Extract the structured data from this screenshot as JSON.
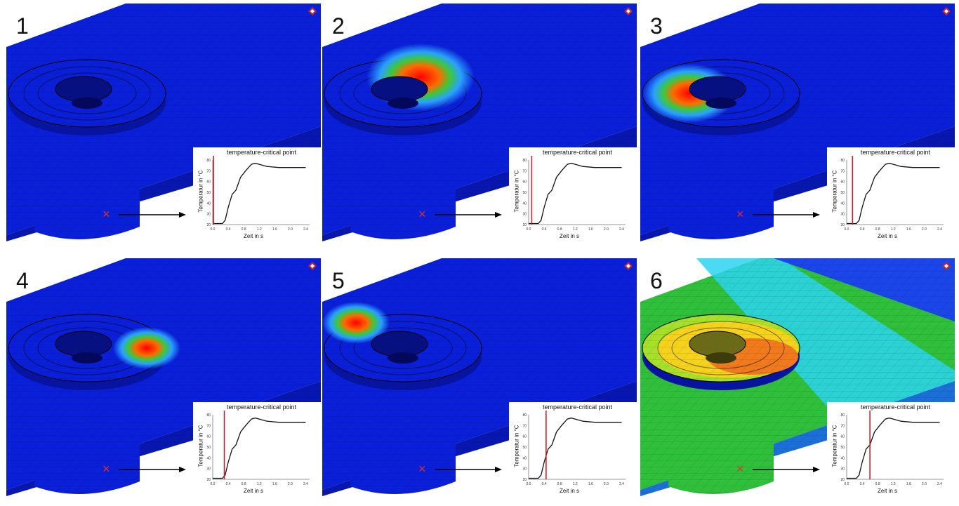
{
  "panels": [
    {
      "number": "1",
      "chart_title": "temperature-critical point"
    },
    {
      "number": "2",
      "chart_title": "temperature-critical point"
    },
    {
      "number": "3",
      "chart_title": "temperature-critical point"
    },
    {
      "number": "4",
      "chart_title": "temperature-critical point"
    },
    {
      "number": "5",
      "chart_title": "temperature-critical point"
    },
    {
      "number": "6",
      "chart_title": "temperature-critical point"
    }
  ],
  "chart_data": [
    {
      "type": "line",
      "title": "temperature-critical point",
      "xlabel": "Zeit in s",
      "ylabel": "Temperatur in °C",
      "xlim": [
        0,
        2.5
      ],
      "ylim": [
        20,
        80
      ],
      "x_ticks": [
        "0.0",
        "0.4",
        "0.8",
        "1.2",
        "1.6",
        "2.0",
        "2.4"
      ],
      "y_ticks": [
        "20",
        "30",
        "40",
        "50",
        "60",
        "70",
        "80"
      ],
      "series": [
        {
          "x": [
            0,
            0.25,
            0.32,
            0.4,
            0.5,
            0.6,
            0.72,
            0.85,
            1.0,
            1.1,
            1.2,
            1.4,
            1.7,
            2.0,
            2.4
          ],
          "y": [
            21,
            21,
            24,
            36,
            48,
            52,
            64,
            70,
            76,
            77,
            76,
            74,
            73,
            73,
            73
          ]
        }
      ],
      "cursor_x": 0.02
    },
    {
      "type": "line",
      "title": "temperature-critical point",
      "xlabel": "Zeit in s",
      "ylabel": "Temperatur in °C",
      "xlim": [
        0,
        2.5
      ],
      "ylim": [
        20,
        80
      ],
      "x_ticks": [
        "0.0",
        "0.4",
        "0.8",
        "1.2",
        "1.6",
        "2.0",
        "2.4"
      ],
      "y_ticks": [
        "20",
        "30",
        "40",
        "50",
        "60",
        "70",
        "80"
      ],
      "series": [
        {
          "x": [
            0,
            0.25,
            0.32,
            0.4,
            0.5,
            0.6,
            0.72,
            0.85,
            1.0,
            1.1,
            1.2,
            1.4,
            1.7,
            2.0,
            2.4
          ],
          "y": [
            21,
            21,
            24,
            36,
            48,
            52,
            64,
            70,
            76,
            77,
            76,
            74,
            73,
            73,
            73
          ]
        }
      ],
      "cursor_x": 0.08
    },
    {
      "type": "line",
      "title": "temperature-critical point",
      "xlabel": "Zeit in s",
      "ylabel": "Temperatur in °C",
      "xlim": [
        0,
        2.5
      ],
      "ylim": [
        20,
        80
      ],
      "x_ticks": [
        "0.0",
        "0.4",
        "0.8",
        "1.2",
        "1.6",
        "2.0",
        "2.4"
      ],
      "y_ticks": [
        "20",
        "30",
        "40",
        "50",
        "60",
        "70",
        "80"
      ],
      "series": [
        {
          "x": [
            0,
            0.25,
            0.32,
            0.4,
            0.5,
            0.6,
            0.72,
            0.85,
            1.0,
            1.1,
            1.2,
            1.4,
            1.7,
            2.0,
            2.4
          ],
          "y": [
            21,
            21,
            24,
            36,
            48,
            52,
            64,
            70,
            76,
            77,
            76,
            74,
            73,
            73,
            73
          ]
        }
      ],
      "cursor_x": 0.15
    },
    {
      "type": "line",
      "title": "temperature-critical point",
      "xlabel": "Zeit in s",
      "ylabel": "Temperatur in °C",
      "xlim": [
        0,
        2.5
      ],
      "ylim": [
        20,
        80
      ],
      "x_ticks": [
        "0.0",
        "0.4",
        "0.8",
        "1.2",
        "1.6",
        "2.0",
        "2.4"
      ],
      "y_ticks": [
        "20",
        "30",
        "40",
        "50",
        "60",
        "70",
        "80"
      ],
      "series": [
        {
          "x": [
            0,
            0.25,
            0.32,
            0.4,
            0.5,
            0.6,
            0.72,
            0.85,
            1.0,
            1.1,
            1.2,
            1.4,
            1.7,
            2.0,
            2.4
          ],
          "y": [
            21,
            21,
            24,
            36,
            48,
            52,
            64,
            70,
            76,
            77,
            76,
            74,
            73,
            73,
            73
          ]
        }
      ],
      "cursor_x": 0.3
    },
    {
      "type": "line",
      "title": "temperature-critical point",
      "xlabel": "Zeit in s",
      "ylabel": "Temperatur in °C",
      "xlim": [
        0,
        2.5
      ],
      "ylim": [
        20,
        80
      ],
      "x_ticks": [
        "0.0",
        "0.4",
        "0.8",
        "1.2",
        "1.6",
        "2.0",
        "2.4"
      ],
      "y_ticks": [
        "20",
        "30",
        "40",
        "50",
        "60",
        "70",
        "80"
      ],
      "series": [
        {
          "x": [
            0,
            0.25,
            0.32,
            0.4,
            0.5,
            0.6,
            0.72,
            0.85,
            1.0,
            1.1,
            1.2,
            1.4,
            1.7,
            2.0,
            2.4
          ],
          "y": [
            21,
            21,
            24,
            36,
            48,
            52,
            64,
            70,
            76,
            77,
            76,
            74,
            73,
            73,
            73
          ]
        }
      ],
      "cursor_x": 0.45
    },
    {
      "type": "line",
      "title": "temperature-critical point",
      "xlabel": "Zeit in s",
      "ylabel": "Temperatur in °C",
      "xlim": [
        0,
        2.5
      ],
      "ylim": [
        20,
        80
      ],
      "x_ticks": [
        "0.0",
        "0.4",
        "0.8",
        "1.2",
        "1.6",
        "2.0",
        "2.4"
      ],
      "y_ticks": [
        "20",
        "30",
        "40",
        "50",
        "60",
        "70",
        "80"
      ],
      "series": [
        {
          "x": [
            0,
            0.25,
            0.32,
            0.4,
            0.5,
            0.6,
            0.72,
            0.85,
            1.0,
            1.1,
            1.2,
            1.4,
            1.7,
            2.0,
            2.4
          ],
          "y": [
            21,
            21,
            24,
            36,
            48,
            52,
            64,
            70,
            76,
            77,
            76,
            74,
            73,
            73,
            73
          ]
        }
      ],
      "cursor_x": 0.6
    }
  ],
  "colors": {
    "mesh_blue": "#0a1fd8",
    "cursor": "#cc1d2a",
    "marker": "#e03030"
  }
}
